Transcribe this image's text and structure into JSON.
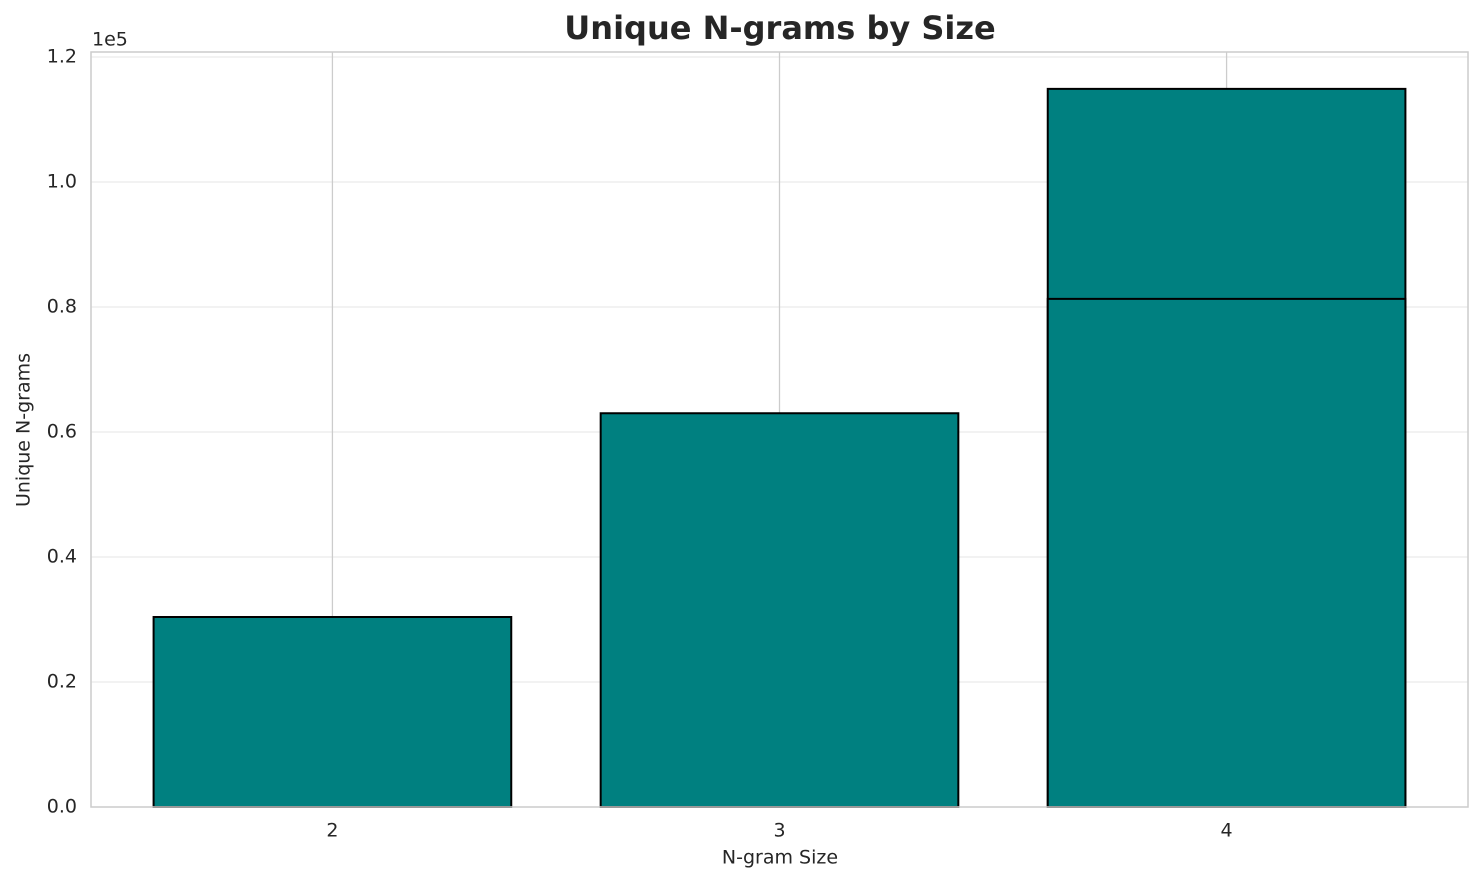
{
  "chart_data": {
    "type": "bar",
    "title": "Unique N-grams by Size",
    "x_label": "N-gram Size",
    "y_label": "Unique N-grams",
    "y_offset_label": "1e5",
    "x": [
      2,
      3,
      4,
      4
    ],
    "values": [
      30400,
      63000,
      114900,
      81300
    ],
    "color": "#008080",
    "edge_color": "#000000",
    "xlim": [
      1.46,
      4.54
    ],
    "xticks": [
      2,
      3,
      4
    ],
    "ylim": [
      0,
      120800
    ],
    "yticks": [
      {
        "value": 0,
        "label": "0.0"
      },
      {
        "value": 20000,
        "label": "0.2"
      },
      {
        "value": 40000,
        "label": "0.4"
      },
      {
        "value": 60000,
        "label": "0.6"
      },
      {
        "value": 80000,
        "label": "0.8"
      },
      {
        "value": 100000,
        "label": "1.0"
      },
      {
        "value": 120000,
        "label": "1.2"
      }
    ],
    "grid": true
  }
}
